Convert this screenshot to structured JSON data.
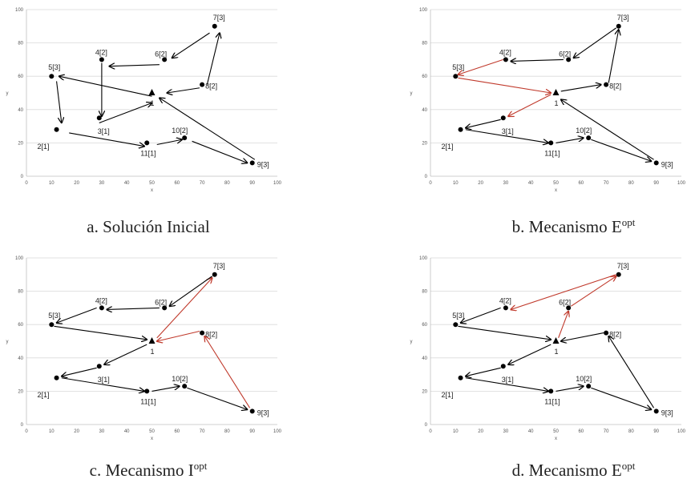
{
  "chart_data": [
    {
      "type": "scatter",
      "caption": "a. Solución Inicial",
      "caption_sup": "",
      "xlabel": "x",
      "ylabel": "y",
      "xlim": [
        0,
        100
      ],
      "ylim": [
        0,
        100
      ],
      "xticks": [
        0,
        10,
        20,
        30,
        40,
        50,
        60,
        70,
        80,
        90,
        100
      ],
      "yticks": [
        0,
        20,
        40,
        60,
        80,
        100
      ],
      "grid": "horizontal",
      "depot": {
        "label": "1",
        "x": 50,
        "y": 50
      },
      "points": [
        {
          "label": "2[1]",
          "x": 12,
          "y": 28
        },
        {
          "label": "3[1]",
          "x": 29,
          "y": 35
        },
        {
          "label": "4[2]",
          "x": 30,
          "y": 70
        },
        {
          "label": "5[3]",
          "x": 10,
          "y": 60
        },
        {
          "label": "6[2]",
          "x": 55,
          "y": 70
        },
        {
          "label": "7[3]",
          "x": 75,
          "y": 90
        },
        {
          "label": "8[2]",
          "x": 70,
          "y": 55
        },
        {
          "label": "9[3]",
          "x": 90,
          "y": 8
        },
        {
          "label": "10[2]",
          "x": 63,
          "y": 23
        },
        {
          "label": "11[1]",
          "x": 48,
          "y": 20
        }
      ],
      "arrows": [
        {
          "from": [
            50,
            48
          ],
          "to": [
            13,
            60
          ],
          "highlight": false
        },
        {
          "from": [
            12,
            57
          ],
          "to": [
            14,
            32
          ],
          "highlight": false
        },
        {
          "from": [
            17,
            26
          ],
          "to": [
            47,
            18
          ],
          "highlight": false
        },
        {
          "from": [
            52,
            19
          ],
          "to": [
            62,
            22
          ],
          "highlight": false
        },
        {
          "from": [
            66,
            21
          ],
          "to": [
            88,
            8
          ],
          "highlight": false
        },
        {
          "from": [
            91,
            10
          ],
          "to": [
            53,
            47
          ],
          "highlight": false
        },
        {
          "from": [
            29,
            32
          ],
          "to": [
            50,
            44
          ],
          "highlight": false
        },
        {
          "from": [
            30,
            68
          ],
          "to": [
            30,
            36
          ],
          "highlight": false
        },
        {
          "from": [
            53,
            67
          ],
          "to": [
            33,
            66
          ],
          "highlight": false
        },
        {
          "from": [
            73,
            86
          ],
          "to": [
            58,
            71
          ],
          "highlight": false
        },
        {
          "from": [
            72,
            55
          ],
          "to": [
            77,
            86
          ],
          "highlight": false
        },
        {
          "from": [
            69,
            53
          ],
          "to": [
            56,
            50
          ],
          "highlight": false
        }
      ]
    },
    {
      "type": "scatter",
      "caption": "b. Mecanismo E",
      "caption_sup": "opt",
      "xlabel": "x",
      "ylabel": "y",
      "xlim": [
        0,
        100
      ],
      "ylim": [
        0,
        100
      ],
      "xticks": [
        0,
        10,
        20,
        30,
        40,
        50,
        60,
        70,
        80,
        90,
        100
      ],
      "yticks": [
        0,
        20,
        40,
        60,
        80,
        100
      ],
      "grid": "horizontal",
      "depot": {
        "label": "1",
        "x": 50,
        "y": 50
      },
      "points": [
        {
          "label": "2[1]",
          "x": 12,
          "y": 28
        },
        {
          "label": "3[1]",
          "x": 29,
          "y": 35
        },
        {
          "label": "4[2]",
          "x": 30,
          "y": 70
        },
        {
          "label": "5[3]",
          "x": 10,
          "y": 60
        },
        {
          "label": "6[2]",
          "x": 55,
          "y": 70
        },
        {
          "label": "7[3]",
          "x": 75,
          "y": 90
        },
        {
          "label": "8[2]",
          "x": 70,
          "y": 55
        },
        {
          "label": "9[3]",
          "x": 90,
          "y": 8
        },
        {
          "label": "10[2]",
          "x": 63,
          "y": 23
        },
        {
          "label": "11[1]",
          "x": 48,
          "y": 20
        }
      ],
      "arrows": [
        {
          "from": [
            11,
            59
          ],
          "to": [
            48,
            50
          ],
          "highlight": true
        },
        {
          "from": [
            48,
            49
          ],
          "to": [
            31,
            36
          ],
          "highlight": true
        },
        {
          "from": [
            29,
            70
          ],
          "to": [
            11,
            61
          ],
          "highlight": true
        },
        {
          "from": [
            28,
            34
          ],
          "to": [
            14,
            29
          ],
          "highlight": false
        },
        {
          "from": [
            14,
            28
          ],
          "to": [
            47,
            20
          ],
          "highlight": false
        },
        {
          "from": [
            50,
            20
          ],
          "to": [
            61,
            23
          ],
          "highlight": false
        },
        {
          "from": [
            64,
            22
          ],
          "to": [
            88,
            9
          ],
          "highlight": false
        },
        {
          "from": [
            89,
            10
          ],
          "to": [
            52,
            46
          ],
          "highlight": false
        },
        {
          "from": [
            52,
            51
          ],
          "to": [
            68,
            55
          ],
          "highlight": false
        },
        {
          "from": [
            71,
            56
          ],
          "to": [
            75,
            88
          ],
          "highlight": false
        },
        {
          "from": [
            74,
            89
          ],
          "to": [
            57,
            71
          ],
          "highlight": false
        },
        {
          "from": [
            53,
            70
          ],
          "to": [
            32,
            69
          ],
          "highlight": false
        }
      ]
    },
    {
      "type": "scatter",
      "caption": "c. Mecanismo I",
      "caption_sup": "opt",
      "xlabel": "x",
      "ylabel": "y",
      "xlim": [
        0,
        100
      ],
      "ylim": [
        0,
        100
      ],
      "xticks": [
        0,
        10,
        20,
        30,
        40,
        50,
        60,
        70,
        80,
        90,
        100
      ],
      "yticks": [
        0,
        20,
        40,
        60,
        80,
        100
      ],
      "grid": "horizontal",
      "depot": {
        "label": "1",
        "x": 50,
        "y": 50
      },
      "points": [
        {
          "label": "2[1]",
          "x": 12,
          "y": 28
        },
        {
          "label": "3[1]",
          "x": 29,
          "y": 35
        },
        {
          "label": "4[2]",
          "x": 30,
          "y": 70
        },
        {
          "label": "5[3]",
          "x": 10,
          "y": 60
        },
        {
          "label": "6[2]",
          "x": 55,
          "y": 70
        },
        {
          "label": "7[3]",
          "x": 75,
          "y": 90
        },
        {
          "label": "8[2]",
          "x": 70,
          "y": 55
        },
        {
          "label": "9[3]",
          "x": 90,
          "y": 8
        },
        {
          "label": "10[2]",
          "x": 63,
          "y": 23
        },
        {
          "label": "11[1]",
          "x": 48,
          "y": 20
        }
      ],
      "arrows": [
        {
          "from": [
            52,
            52
          ],
          "to": [
            74,
            88
          ],
          "highlight": true
        },
        {
          "from": [
            69,
            56
          ],
          "to": [
            52,
            50
          ],
          "highlight": true
        },
        {
          "from": [
            89,
            10
          ],
          "to": [
            71,
            53
          ],
          "highlight": true
        },
        {
          "from": [
            74,
            89
          ],
          "to": [
            57,
            71
          ],
          "highlight": false
        },
        {
          "from": [
            53,
            70
          ],
          "to": [
            32,
            69
          ],
          "highlight": false
        },
        {
          "from": [
            28,
            70
          ],
          "to": [
            12,
            61
          ],
          "highlight": false
        },
        {
          "from": [
            11,
            59
          ],
          "to": [
            48,
            51
          ],
          "highlight": false
        },
        {
          "from": [
            48,
            48
          ],
          "to": [
            31,
            36
          ],
          "highlight": false
        },
        {
          "from": [
            28,
            34
          ],
          "to": [
            14,
            29
          ],
          "highlight": false
        },
        {
          "from": [
            14,
            28
          ],
          "to": [
            47,
            20
          ],
          "highlight": false
        },
        {
          "from": [
            50,
            20
          ],
          "to": [
            61,
            23
          ],
          "highlight": false
        },
        {
          "from": [
            64,
            22
          ],
          "to": [
            88,
            9
          ],
          "highlight": false
        }
      ]
    },
    {
      "type": "scatter",
      "caption": "d. Mecanismo E",
      "caption_sup": "opt",
      "xlabel": "x",
      "ylabel": "y",
      "xlim": [
        0,
        100
      ],
      "ylim": [
        0,
        100
      ],
      "xticks": [
        0,
        10,
        20,
        30,
        40,
        50,
        60,
        70,
        80,
        90,
        100
      ],
      "yticks": [
        0,
        20,
        40,
        60,
        80,
        100
      ],
      "grid": "horizontal",
      "depot": {
        "label": "1",
        "x": 50,
        "y": 50
      },
      "points": [
        {
          "label": "2[1]",
          "x": 12,
          "y": 28
        },
        {
          "label": "3[1]",
          "x": 29,
          "y": 35
        },
        {
          "label": "4[2]",
          "x": 30,
          "y": 70
        },
        {
          "label": "5[3]",
          "x": 10,
          "y": 60
        },
        {
          "label": "6[2]",
          "x": 55,
          "y": 70
        },
        {
          "label": "7[3]",
          "x": 75,
          "y": 90
        },
        {
          "label": "8[2]",
          "x": 70,
          "y": 55
        },
        {
          "label": "9[3]",
          "x": 90,
          "y": 8
        },
        {
          "label": "10[2]",
          "x": 63,
          "y": 23
        },
        {
          "label": "11[1]",
          "x": 48,
          "y": 20
        }
      ],
      "arrows": [
        {
          "from": [
            51,
            52
          ],
          "to": [
            55,
            68
          ],
          "highlight": true
        },
        {
          "from": [
            56,
            71
          ],
          "to": [
            74,
            89
          ],
          "highlight": true
        },
        {
          "from": [
            74,
            90
          ],
          "to": [
            32,
            69
          ],
          "highlight": true
        },
        {
          "from": [
            11,
            59
          ],
          "to": [
            48,
            51
          ],
          "highlight": false
        },
        {
          "from": [
            48,
            48
          ],
          "to": [
            31,
            36
          ],
          "highlight": false
        },
        {
          "from": [
            28,
            34
          ],
          "to": [
            14,
            29
          ],
          "highlight": false
        },
        {
          "from": [
            14,
            28
          ],
          "to": [
            47,
            20
          ],
          "highlight": false
        },
        {
          "from": [
            50,
            20
          ],
          "to": [
            61,
            23
          ],
          "highlight": false
        },
        {
          "from": [
            64,
            22
          ],
          "to": [
            88,
            9
          ],
          "highlight": false
        },
        {
          "from": [
            89,
            10
          ],
          "to": [
            71,
            53
          ],
          "highlight": false
        },
        {
          "from": [
            69,
            55
          ],
          "to": [
            52,
            50
          ],
          "highlight": false
        },
        {
          "from": [
            28,
            70
          ],
          "to": [
            12,
            61
          ],
          "highlight": false
        }
      ]
    }
  ],
  "colors": {
    "axis": "#bfbfbf",
    "grid": "#d9d9d9",
    "arrow": "#000000",
    "highlight": "#c0392b",
    "text": "#222222"
  }
}
